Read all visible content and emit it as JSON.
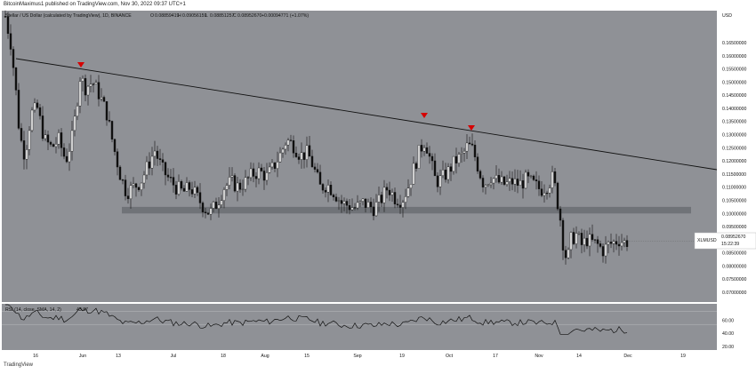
{
  "publisher_line": "BitcoinMaximus1 published on TradingView.com, Nov 30, 2022 09:37 UTC+1",
  "footer_brand": "TradingView",
  "chart": {
    "symbol_title": "Stellar / US Dollar (calculated by TradingView), 1D, BINANCE",
    "ohlc": {
      "O_label": "O",
      "O": "0.08859419",
      "H_label": "H",
      "H": "0.09056159",
      "L_label": "L",
      "L": "0.08851257",
      "C_label": "C",
      "C": "0.08952670",
      "change": "+0.00094771 (+1.07%)"
    },
    "currency": "USD",
    "price_ticks": [
      "0.16500000",
      "0.16000000",
      "0.15500000",
      "0.15000000",
      "0.14500000",
      "0.14000000",
      "0.13500000",
      "0.13000000",
      "0.12500000",
      "0.12000000",
      "0.11500000",
      "0.11000000",
      "0.10500000",
      "0.10000000",
      "0.09500000",
      "0.09000000",
      "0.08500000",
      "0.08000000",
      "0.07500000",
      "0.07000000"
    ],
    "price_tick_values": [
      0.165,
      0.16,
      0.155,
      0.15,
      0.145,
      0.14,
      0.135,
      0.13,
      0.125,
      0.12,
      0.115,
      0.11,
      0.105,
      0.1,
      0.095,
      0.09,
      0.085,
      0.08,
      0.075,
      0.07
    ],
    "last_price_label": {
      "symbol": "XLMUSD",
      "price": "0.08952670",
      "countdown": "15:22:39",
      "value": 0.0895267
    },
    "date_ticks": [
      "16",
      "Jun",
      "13",
      "Jul",
      "18",
      "Aug",
      "15",
      "Sep",
      "19",
      "Oct",
      "17",
      "Nov",
      "14",
      "Dec",
      "19"
    ],
    "support_zone": {
      "low": 0.1,
      "high": 0.1025
    },
    "colors": {
      "background": "#8f9196",
      "up_candle": "#ffffff",
      "down_candle": "#111111",
      "trendline": "#111111",
      "marker": "#d60000",
      "support_zone": "#6b6d73",
      "rsi_line": "#111111"
    },
    "rsi": {
      "label": "RSI (14, close, SMA, 14, 2)",
      "value": "43.97",
      "ticks": [
        "60.00",
        "40.00",
        "20.00"
      ],
      "tick_values": [
        60,
        40,
        20
      ]
    }
  }
}
